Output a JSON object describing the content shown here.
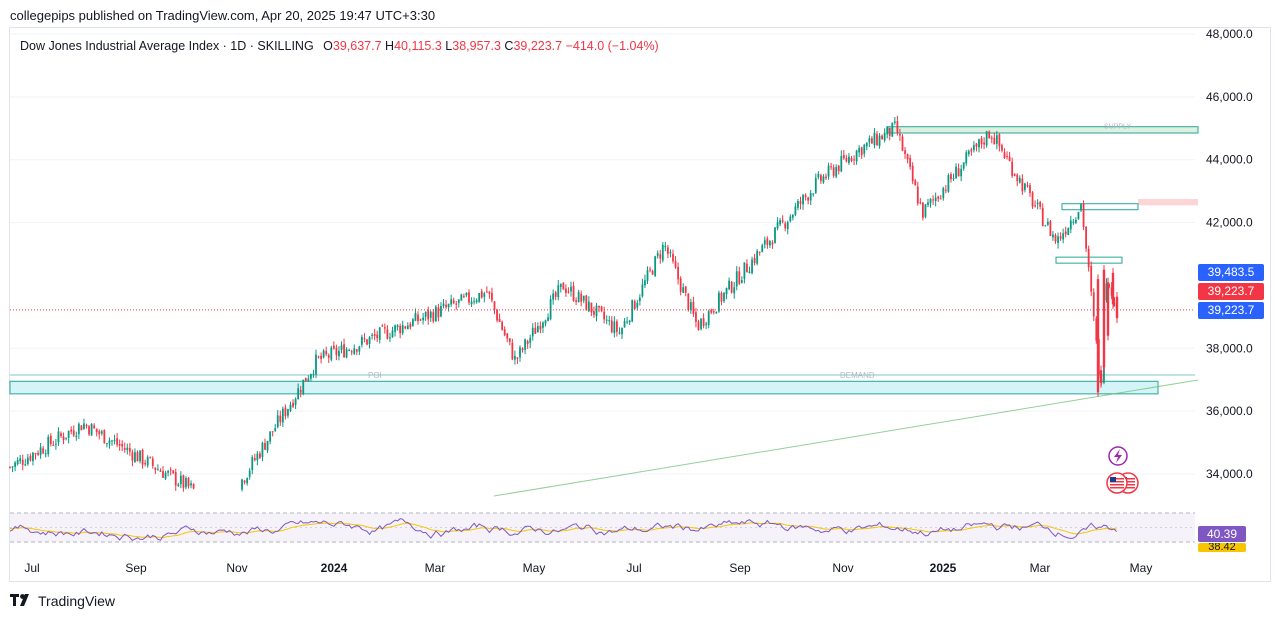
{
  "header": {
    "publisher_line": "collegepips published on TradingView.com, Apr 20, 2025 19:47 UTC+3:30"
  },
  "legend": {
    "symbol": "Dow Jones Industrial Average Index · 1D · SKILLING",
    "open_label": "O",
    "open": "39,637.7",
    "high_label": "H",
    "high": "40,115.3",
    "low_label": "L",
    "low": "38,957.3",
    "close_label": "C",
    "close": "39,223.7",
    "change": "−414.0 (−1.04%)"
  },
  "price_badges": [
    {
      "text": "39,483.5",
      "color": "#2962ff",
      "price": 39483.5
    },
    {
      "text": "39,223.7",
      "color": "#f23645",
      "price": 39223.7
    },
    {
      "text": "39,223.7",
      "color": "#2962ff",
      "price": 39223.7
    }
  ],
  "rsi_badges": [
    {
      "text": "40.39",
      "color": "#7e57c2"
    },
    {
      "text": "38.42",
      "color": "#f7c600"
    }
  ],
  "zone_labels": {
    "demand": "DEMAND",
    "poi": "POI",
    "supply": "SUPPLY"
  },
  "footer": {
    "logo_text": "TradingView"
  },
  "colors": {
    "up": "#089981",
    "down": "#f23645",
    "rsi": "#7e57c2",
    "rsi_ma": "#f7c600",
    "zone_fill": "#b2ebf2",
    "zone_border": "#26a69a",
    "supply_fill": "#fccbcd",
    "trendline": "#66bb6a"
  },
  "chart_data": {
    "type": "candlestick",
    "y_axis": {
      "ticks": [
        "48,000.0",
        "46,000.0",
        "44,000.0",
        "42,000.0",
        "38,000.0",
        "36,000.0",
        "34,000.0"
      ],
      "tick_values": [
        48000,
        46000,
        44000,
        42000,
        38000,
        36000,
        34000
      ],
      "range": [
        33300,
        48000
      ]
    },
    "x_axis": {
      "ticks": [
        "Jul",
        "Sep",
        "Nov",
        "2024",
        "Mar",
        "May",
        "Jul",
        "Sep",
        "Nov",
        "2025",
        "Mar",
        "May"
      ],
      "bold_ticks": [
        "2024",
        "2025"
      ]
    },
    "key_points": [
      {
        "date": "2023-06-01",
        "price": 33700
      },
      {
        "date": "2023-08-01",
        "price": 35600
      },
      {
        "date": "2023-10-25",
        "price": 32900
      },
      {
        "date": "2023-12-20",
        "price": 37600
      },
      {
        "date": "2024-04-01",
        "price": 39800
      },
      {
        "date": "2024-04-18",
        "price": 37600
      },
      {
        "date": "2024-05-17",
        "price": 40000
      },
      {
        "date": "2024-06-20",
        "price": 38500
      },
      {
        "date": "2024-07-17",
        "price": 41300
      },
      {
        "date": "2024-08-06",
        "price": 38700
      },
      {
        "date": "2024-10-18",
        "price": 43300
      },
      {
        "date": "2024-11-11",
        "price": 44300
      },
      {
        "date": "2024-12-04",
        "price": 45000
      },
      {
        "date": "2024-12-20",
        "price": 42300
      },
      {
        "date": "2025-01-30",
        "price": 44900
      },
      {
        "date": "2025-03-11",
        "price": 41400
      },
      {
        "date": "2025-03-26",
        "price": 42600
      },
      {
        "date": "2025-04-07",
        "price": 36600
      },
      {
        "date": "2025-04-09",
        "price": 40500
      },
      {
        "date": "2025-04-17",
        "price": 39224
      }
    ],
    "zones": [
      {
        "name": "DEMAND",
        "from": 36550,
        "to": 36950
      },
      {
        "name": "SUPPLY",
        "from": 44850,
        "to": 45050
      },
      {
        "name": "supply-2",
        "from": 42500,
        "to": 42700
      },
      {
        "name": "box-1",
        "from": 42450,
        "to": 42650
      },
      {
        "name": "box-2",
        "from": 40800,
        "to": 40950
      }
    ],
    "rsi": {
      "last": 40.39,
      "ma_last": 38.42,
      "bands": [
        70,
        30
      ]
    }
  }
}
